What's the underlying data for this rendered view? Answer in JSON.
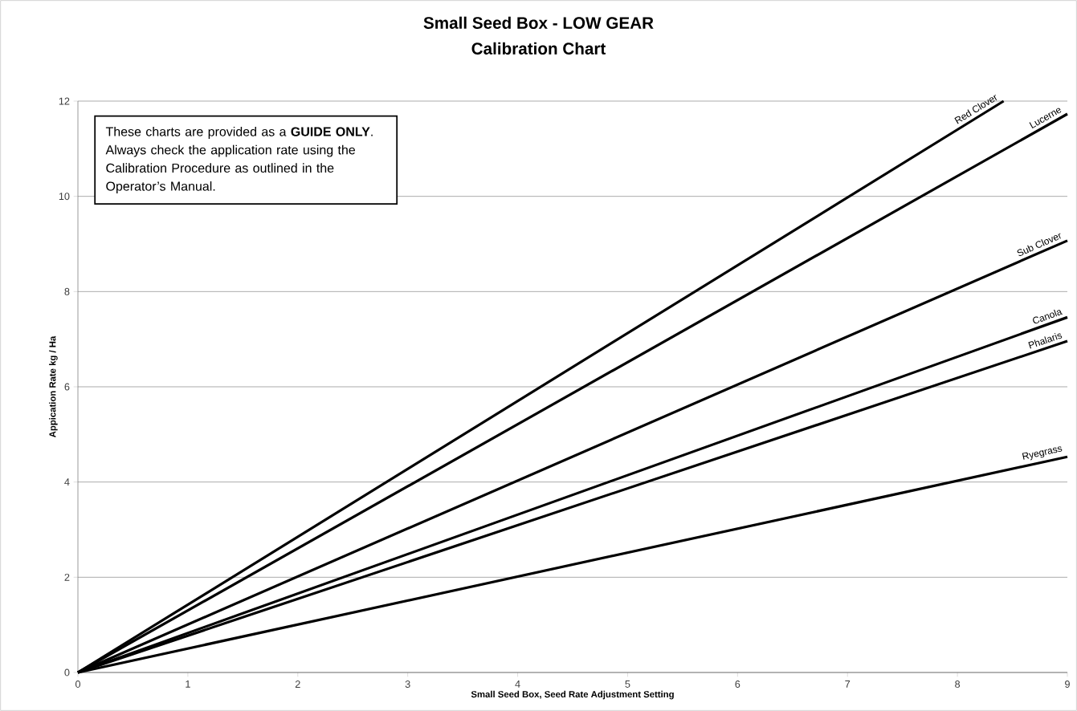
{
  "chart_data": {
    "type": "line",
    "title": "Small Seed Box - LOW GEAR",
    "subtitle": "Calibration Chart",
    "xlabel": "Small Seed Box, Seed Rate Adjustment Setting",
    "ylabel": "Appication Rate kg / Ha",
    "xlim": [
      0,
      9
    ],
    "ylim": [
      0,
      12
    ],
    "xticks": [
      0,
      1,
      2,
      3,
      4,
      5,
      6,
      7,
      8,
      9
    ],
    "yticks": [
      0,
      2,
      4,
      6,
      8,
      10,
      12
    ],
    "grid": "y",
    "legend": false,
    "marker": "none",
    "line_style": "solid",
    "annotations": [
      "These charts are provided as a **GUIDE ONLY**. Always check the application rate using the Calibration Procedure as outlined in the Operator’s Manual."
    ],
    "series": [
      {
        "name": "Red Clover",
        "color": "#000000",
        "x": [
          0,
          8.42
        ],
        "values": [
          0,
          12
        ]
      },
      {
        "name": "Lucerne",
        "color": "#000000",
        "x": [
          0,
          9
        ],
        "values": [
          0,
          11.73
        ]
      },
      {
        "name": "Sub Clover",
        "color": "#000000",
        "x": [
          0,
          9
        ],
        "values": [
          0,
          9.07
        ]
      },
      {
        "name": "Canola",
        "color": "#000000",
        "x": [
          0,
          9
        ],
        "values": [
          0,
          7.46
        ]
      },
      {
        "name": "Phalaris",
        "color": "#000000",
        "x": [
          0,
          9
        ],
        "values": [
          0,
          6.96
        ]
      },
      {
        "name": "Ryegrass",
        "color": "#000000",
        "x": [
          0,
          9
        ],
        "values": [
          0,
          4.53
        ]
      }
    ]
  }
}
